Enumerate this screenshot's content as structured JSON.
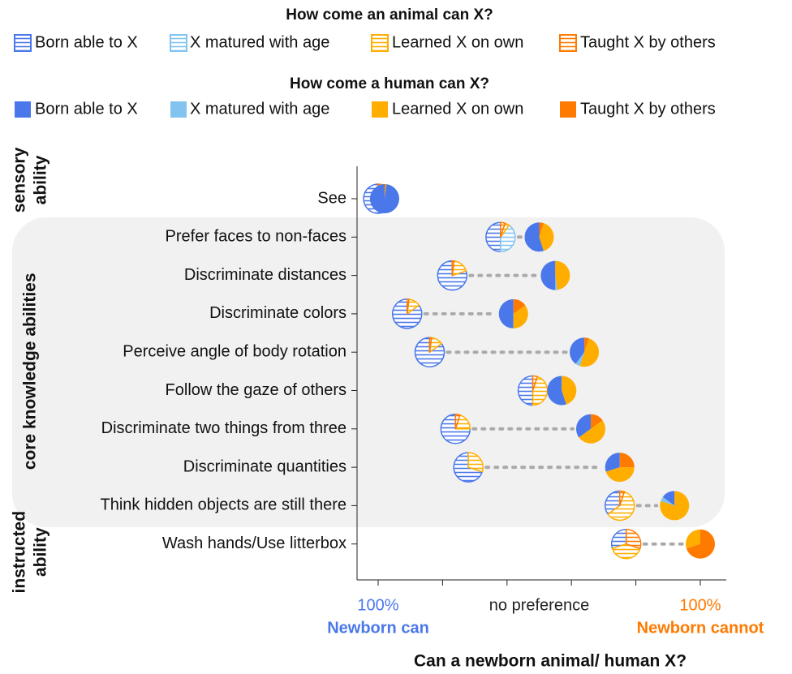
{
  "chart_data": {
    "type": "dotpie",
    "components": [
      {
        "name": "Born able to X",
        "color": "#4a78ea"
      },
      {
        "name": "X matured with age",
        "color": "#82c3ef"
      },
      {
        "name": "Learned X on own",
        "color": "#ffae00"
      },
      {
        "name": "Taught X by others",
        "color": "#ff7a00"
      }
    ],
    "animal": {
      "legend_title": "How come an animal can X?",
      "x": [
        0.0,
        0.38,
        0.23,
        0.09,
        0.16,
        0.48,
        0.24,
        0.28,
        0.75,
        0.77
      ],
      "shares": [
        [
          95,
          0,
          3,
          2
        ],
        [
          50,
          40,
          5,
          5
        ],
        [
          80,
          0,
          18,
          2
        ],
        [
          85,
          0,
          13,
          2
        ],
        [
          85,
          0,
          13,
          2
        ],
        [
          50,
          0,
          45,
          5
        ],
        [
          75,
          0,
          20,
          5
        ],
        [
          70,
          0,
          30,
          0
        ],
        [
          35,
          0,
          60,
          5
        ],
        [
          30,
          0,
          40,
          30
        ]
      ]
    },
    "human": {
      "legend_title": "How come a human can X?",
      "x": [
        0.02,
        0.5,
        0.55,
        0.42,
        0.64,
        0.57,
        0.66,
        0.75,
        0.92,
        1.0
      ],
      "shares": [
        [
          98,
          0,
          1,
          1
        ],
        [
          55,
          0,
          40,
          5
        ],
        [
          50,
          2,
          48,
          0
        ],
        [
          50,
          0,
          35,
          15
        ],
        [
          40,
          5,
          50,
          5
        ],
        [
          55,
          0,
          45,
          0
        ],
        [
          35,
          0,
          50,
          15
        ],
        [
          30,
          0,
          45,
          25
        ],
        [
          15,
          5,
          80,
          0
        ],
        [
          0,
          0,
          30,
          70
        ]
      ]
    },
    "categories": [
      "See",
      "Prefer faces to non-faces",
      "Discriminate distances",
      "Discriminate colors",
      "Perceive angle of body rotation",
      "Follow the gaze of others",
      "Discriminate two things from three",
      "Discriminate quantities",
      "Think hidden objects are still there",
      "Wash hands/Use litterbox"
    ],
    "groups": [
      {
        "label_lines": [
          "sensory",
          "ability"
        ],
        "rows": [
          0,
          0
        ]
      },
      {
        "label_lines": [
          "core knowledge abilities"
        ],
        "rows": [
          1,
          8
        ]
      },
      {
        "label_lines": [
          "instructed",
          "ability"
        ],
        "rows": [
          9,
          9
        ]
      }
    ],
    "xlim": [
      -0.065,
      1.073
    ],
    "xticks": [
      0,
      0.2,
      0.4,
      0.6,
      0.8,
      1
    ],
    "x_axis_labels": [
      {
        "value": 0,
        "label": "100%",
        "color": "#4a78ea",
        "caption": "Newborn can"
      },
      {
        "value": 0.5,
        "label": "no preference",
        "color": "#222222"
      },
      {
        "value": 1,
        "label": "100%",
        "color": "#ff7a00",
        "caption": "Newborn cannot"
      }
    ],
    "x_label": "Can a newborn animal/ human X?"
  }
}
